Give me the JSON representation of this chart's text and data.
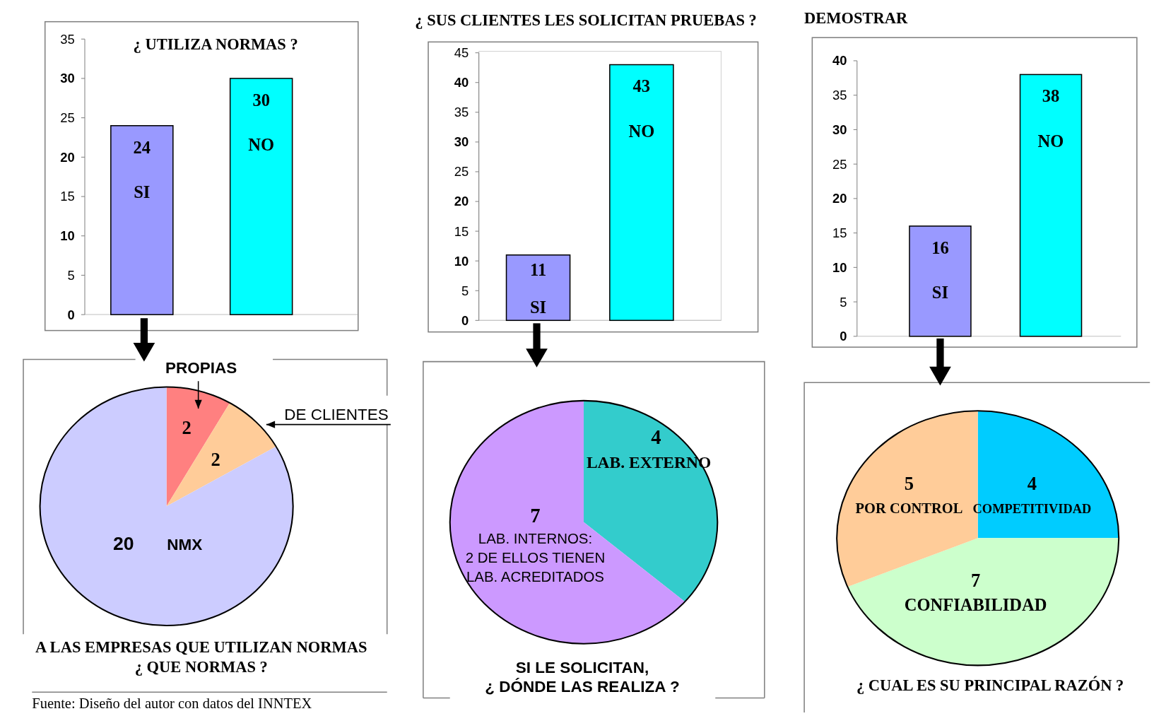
{
  "chart_data": [
    {
      "type": "bar",
      "title": "¿ UTILIZA NORMAS ?",
      "categories": [
        "SI",
        "NO"
      ],
      "values": [
        24,
        30
      ],
      "colors": [
        "#9999ff",
        "#00ffff"
      ],
      "ylim": [
        0,
        35
      ],
      "yticks": [
        0,
        5,
        10,
        15,
        20,
        25,
        30,
        35
      ],
      "data_labels": true
    },
    {
      "type": "bar",
      "title": "¿ SUS CLIENTES LES SOLICITAN PRUEBAS ?",
      "categories": [
        "SI",
        "NO"
      ],
      "values": [
        11,
        43
      ],
      "colors": [
        "#9999ff",
        "#00ffff"
      ],
      "ylim": [
        0,
        45
      ],
      "yticks": [
        0,
        5,
        10,
        15,
        20,
        25,
        30,
        35,
        40,
        45
      ],
      "data_labels": true
    },
    {
      "type": "bar",
      "title": "DEMOSTRAR",
      "categories": [
        "SI",
        "NO"
      ],
      "values": [
        16,
        38
      ],
      "colors": [
        "#9999ff",
        "#00ffff"
      ],
      "ylim": [
        0,
        40
      ],
      "yticks": [
        0,
        5,
        10,
        15,
        20,
        25,
        30,
        35,
        40
      ],
      "data_labels": true
    },
    {
      "type": "pie",
      "title": "A LAS EMPRESAS QUE UTILIZAN NORMAS\n¿ QUE NORMAS ?",
      "categories": [
        "PROPIAS",
        "DE CLIENTES",
        "NMX"
      ],
      "values": [
        2,
        2,
        20
      ],
      "colors": [
        "#ff8080",
        "#ffcc99",
        "#ccccff"
      ],
      "data_labels": true,
      "annotations": [
        "Fuente: Diseño del autor con datos del INNTEX"
      ]
    },
    {
      "type": "pie",
      "title": "SI LE SOLICITAN,\n¿ DÓNDE LAS REALIZA ?",
      "categories": [
        "LAB. EXTERNO",
        "LAB. INTERNOS:\n2 DE ELLOS TIENEN LAB. ACREDITADOS"
      ],
      "values": [
        4,
        7
      ],
      "colors": [
        "#33cccc",
        "#cc99ff"
      ],
      "data_labels": true
    },
    {
      "type": "pie",
      "title": "¿ CUAL ES SU PRINCIPAL RAZÓN ?",
      "categories": [
        "COMPETITIVIDAD",
        "CONFIABILIDAD",
        "POR CONTROL"
      ],
      "values": [
        4,
        7,
        5
      ],
      "colors": [
        "#00ccff",
        "#ccffcc",
        "#ffcc99"
      ],
      "data_labels": true
    }
  ]
}
